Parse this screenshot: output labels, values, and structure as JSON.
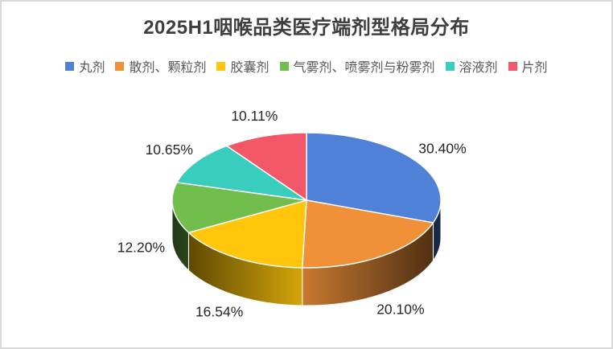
{
  "chart_data": {
    "type": "pie",
    "title": "2025H1咽喉品类医疗端剂型格局分布",
    "legend_position": "top",
    "style": "3d-pie",
    "start_angle_deg": 0,
    "direction": "clockwise",
    "labels_shown": true,
    "series": [
      {
        "name": "丸剂",
        "value": 30.4,
        "label": "30.40%",
        "color": "#4F81D8"
      },
      {
        "name": "散剂、颗粒剂",
        "value": 20.1,
        "label": "20.10%",
        "color": "#F0913A"
      },
      {
        "name": "胶囊剂",
        "value": 16.54,
        "label": "16.54%",
        "color": "#FFC60B"
      },
      {
        "name": "气雾剂、喷雾剂与粉雾剂",
        "value": 12.2,
        "label": "12.20%",
        "color": "#72BE4C"
      },
      {
        "name": "溶液剂",
        "value": 10.65,
        "label": "10.65%",
        "color": "#38CDBC"
      },
      {
        "name": "片剂",
        "value": 10.11,
        "label": "10.11%",
        "color": "#F25767"
      }
    ],
    "colors": {
      "title_text": "#3E3E3E",
      "legend_text": "#595959",
      "label_text": "#262626",
      "frame_border": "#D9D9D9",
      "background": "#FFFFFF"
    }
  }
}
